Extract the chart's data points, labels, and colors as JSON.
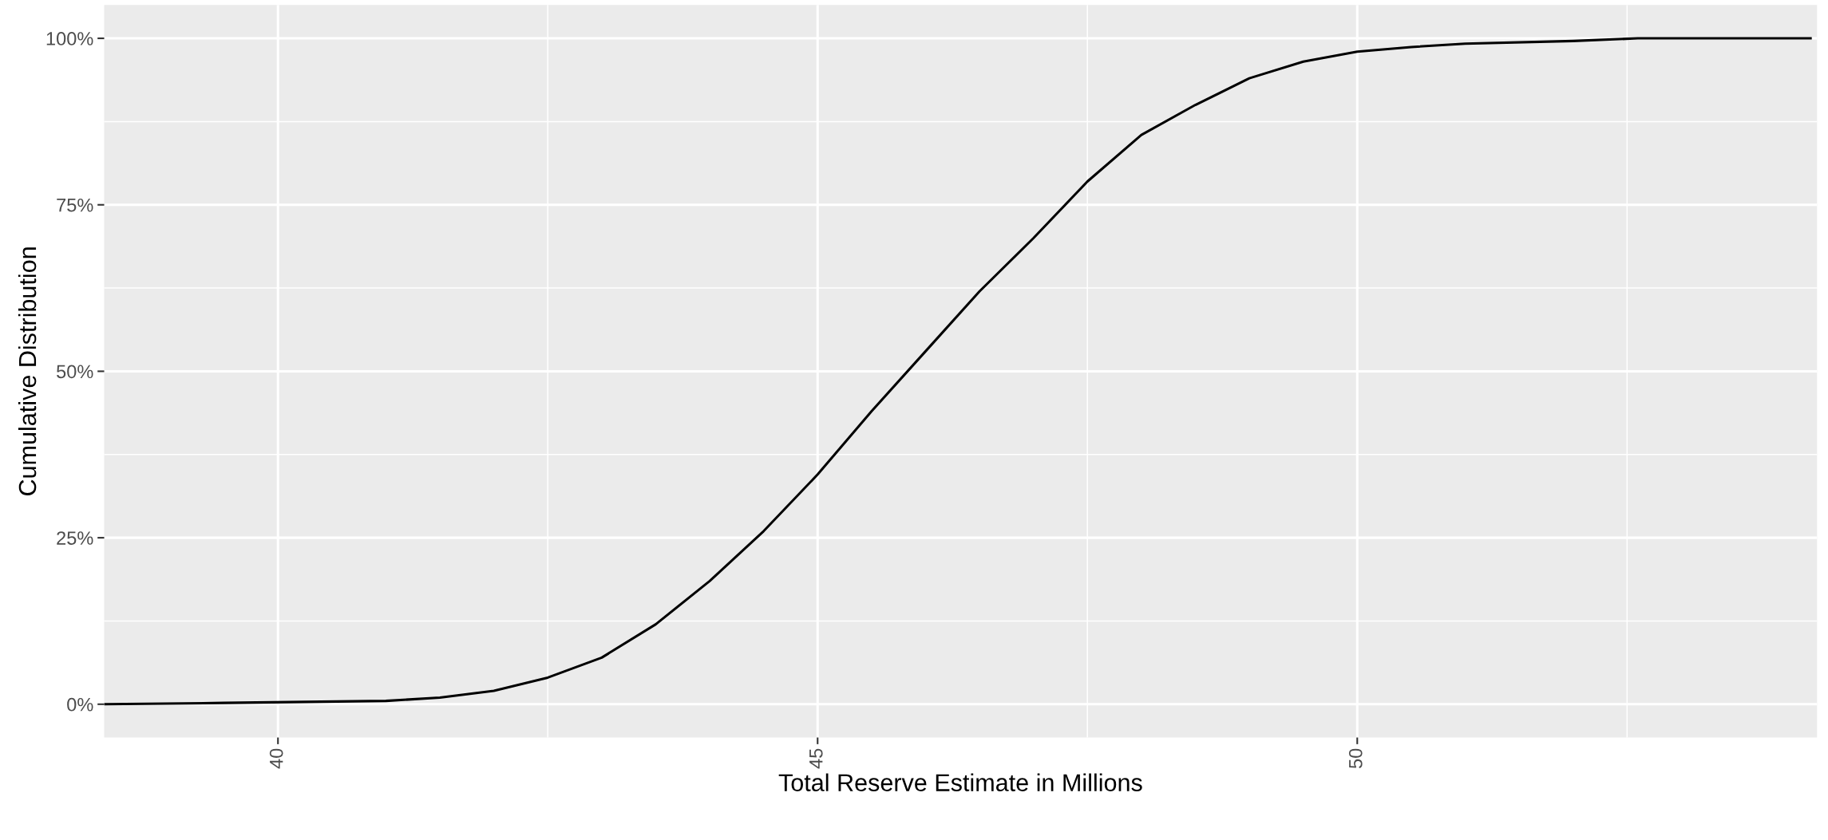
{
  "chart_data": {
    "type": "line",
    "xlabel": "Total Reserve Estimate in Millions",
    "ylabel": "Cumulative Distribution",
    "x": [
      38.4,
      39.5,
      41.0,
      41.5,
      42.0,
      42.5,
      43.0,
      43.5,
      44.0,
      44.5,
      45.0,
      45.5,
      46.0,
      46.5,
      47.0,
      47.5,
      48.0,
      48.5,
      49.0,
      49.5,
      50.0,
      50.5,
      51.0,
      52.0,
      52.6,
      54.2
    ],
    "series": [
      {
        "color": "#000000",
        "values": [
          0,
          0.2,
          0.5,
          1,
          2,
          4,
          7,
          12,
          18.5,
          26,
          34.5,
          44,
          53,
          62,
          70,
          78.5,
          85.5,
          90,
          94,
          96.5,
          98,
          98.7,
          99.2,
          99.6,
          100,
          100
        ]
      }
    ],
    "xlim": [
      38.39,
      54.26
    ],
    "xticks": [
      40,
      45,
      50
    ],
    "ylim": [
      -5,
      105
    ],
    "yticks": [
      {
        "value": 0,
        "label": "0%"
      },
      {
        "value": 25,
        "label": "25%"
      },
      {
        "value": 50,
        "label": "50%"
      },
      {
        "value": 75,
        "label": "75%"
      },
      {
        "value": 100,
        "label": "100%"
      }
    ],
    "grid": true,
    "line_style": "solid",
    "marker": "none"
  }
}
